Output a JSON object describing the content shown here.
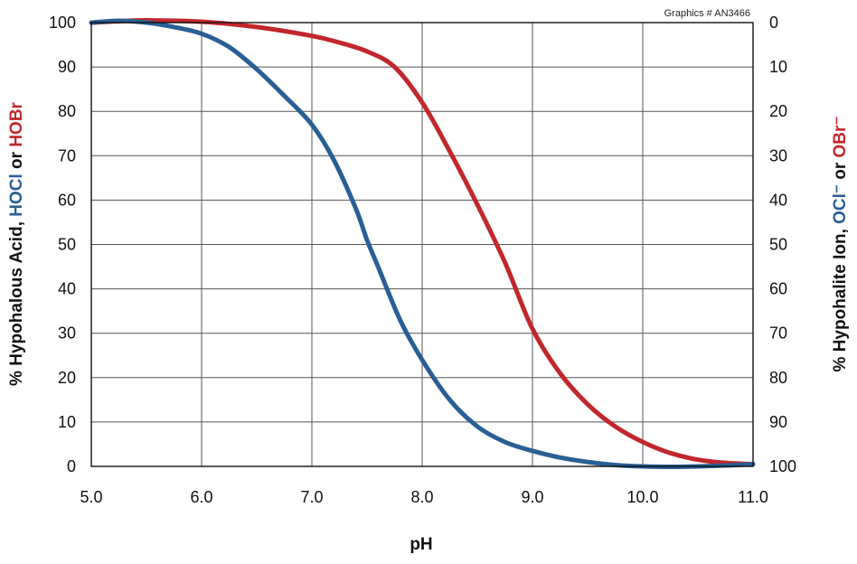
{
  "credit": "Graphics # AN3466",
  "chart_data": {
    "type": "line",
    "xlabel": "pH",
    "ylabel_left": {
      "parts": [
        {
          "text": "% Hypohalous Acid, ",
          "color": "#111111"
        },
        {
          "text": "HOCl",
          "color": "#2a5f95"
        },
        {
          "text": " or ",
          "color": "#111111"
        },
        {
          "text": "HOBr",
          "color": "#c1272d"
        }
      ]
    },
    "ylabel_right": {
      "parts": [
        {
          "text": "% Hypohalite Ion, ",
          "color": "#111111"
        },
        {
          "text": "OCl⁻",
          "color": "#2a5f95"
        },
        {
          "text": " or ",
          "color": "#111111"
        },
        {
          "text": "OBr⁻",
          "color": "#c1272d"
        }
      ]
    },
    "xlim": [
      5.0,
      11.0
    ],
    "ylim": [
      0,
      100
    ],
    "x_ticks": [
      "5.0",
      "6.0",
      "7.0",
      "8.0",
      "9.0",
      "10.0",
      "11.0"
    ],
    "y_ticks_left": [
      "0",
      "10",
      "20",
      "30",
      "40",
      "50",
      "60",
      "70",
      "80",
      "90",
      "100"
    ],
    "y_ticks_right": [
      "100",
      "90",
      "80",
      "70",
      "60",
      "50",
      "40",
      "30",
      "20",
      "10",
      "0"
    ],
    "grid": true,
    "series": [
      {
        "color": "#2a5f95",
        "x": [
          5.0,
          5.25,
          5.5,
          5.75,
          6.0,
          6.25,
          6.5,
          6.75,
          7.0,
          7.2,
          7.4,
          7.5,
          7.6,
          7.8,
          8.0,
          8.25,
          8.5,
          8.75,
          9.0,
          9.25,
          9.5,
          9.75,
          10.0,
          10.25,
          10.5,
          10.75,
          11.0
        ],
        "y": [
          100,
          100.4,
          100,
          99,
          97.5,
          94.5,
          89.5,
          83.5,
          77,
          69,
          58,
          51,
          45,
          33,
          24,
          15,
          9,
          5.5,
          3.5,
          2,
          1,
          0.3,
          0,
          -0.1,
          0,
          0.2,
          0.5
        ]
      },
      {
        "color": "#c1272d",
        "x": [
          5.0,
          5.25,
          5.5,
          6.0,
          6.5,
          7.0,
          7.25,
          7.5,
          7.75,
          8.0,
          8.25,
          8.5,
          8.75,
          9.0,
          9.25,
          9.5,
          9.75,
          10.0,
          10.25,
          10.5,
          10.75,
          11.0
        ],
        "y": [
          100,
          100.3,
          100.5,
          100.2,
          99,
          97,
          95.5,
          93.5,
          90,
          82,
          71,
          59,
          46,
          31,
          21,
          14,
          9,
          5.5,
          3,
          1.5,
          0.8,
          0.5
        ]
      }
    ]
  }
}
